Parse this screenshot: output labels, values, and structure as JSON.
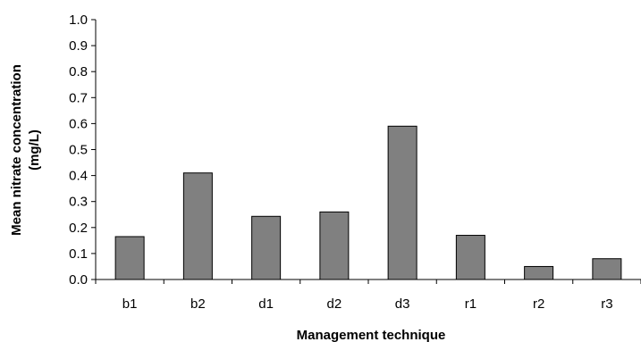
{
  "chart_data": {
    "type": "bar",
    "title": "",
    "xlabel": "Management technique",
    "ylabel_lines": [
      "Mean nitrate concentration",
      "(mg/L)"
    ],
    "categories": [
      "b1",
      "b2",
      "d1",
      "d2",
      "d3",
      "r1",
      "r2",
      "r3"
    ],
    "values": [
      0.165,
      0.41,
      0.243,
      0.26,
      0.59,
      0.17,
      0.05,
      0.08
    ],
    "ylim": [
      0.0,
      1.0
    ],
    "yticks": [
      "0.0",
      "0.1",
      "0.2",
      "0.3",
      "0.4",
      "0.5",
      "0.6",
      "0.7",
      "0.8",
      "0.9",
      "1.0"
    ],
    "grid": false,
    "legend": "none",
    "bar_color": "#808080",
    "bar_edge_color": "#000000"
  }
}
